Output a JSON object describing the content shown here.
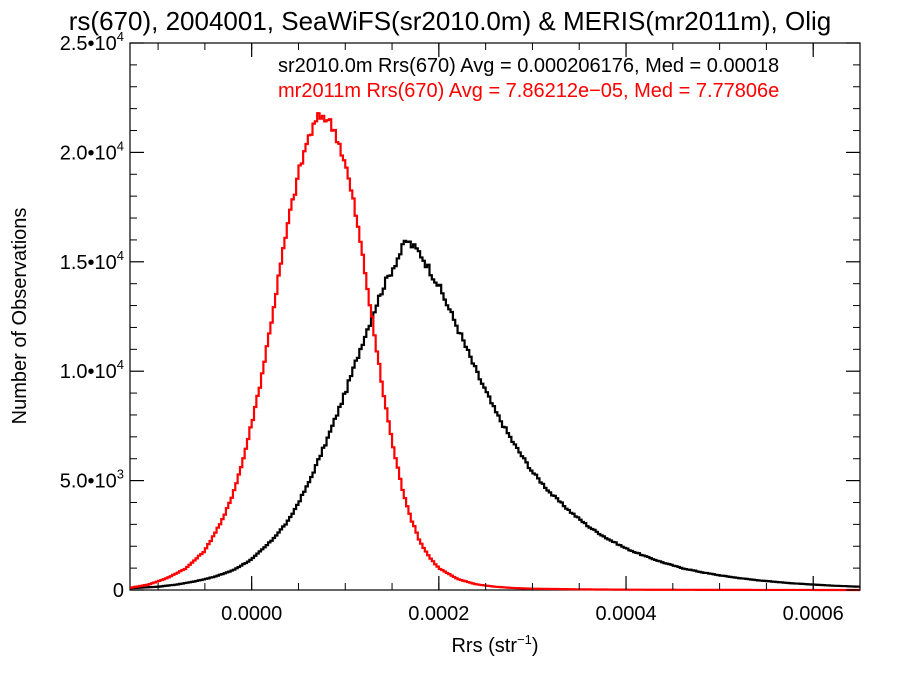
{
  "chart_data": {
    "type": "line",
    "title": "rs(670), 2004001, SeaWiFS(sr2010.0m) & MERIS(mr2011m), Olig",
    "xlabel": "Rrs (str",
    "xlabel_sup": "−1",
    "xlabel_end": ")",
    "ylabel": "Number of Observations",
    "xlim": [
      -0.00013,
      0.00065
    ],
    "ylim": [
      0,
      25000
    ],
    "xticks": [
      {
        "value": 0.0,
        "label": "0.0000"
      },
      {
        "value": 0.0002,
        "label": "0.0002"
      },
      {
        "value": 0.0004,
        "label": "0.0004"
      },
      {
        "value": 0.0006,
        "label": "0.0006"
      }
    ],
    "yticks": [
      {
        "value": 0,
        "mant": "0",
        "exp": ""
      },
      {
        "value": 5000,
        "mant": "5.0•10",
        "exp": "3"
      },
      {
        "value": 10000,
        "mant": "1.0•10",
        "exp": "4"
      },
      {
        "value": 15000,
        "mant": "1.5•10",
        "exp": "4"
      },
      {
        "value": 20000,
        "mant": "2.0•10",
        "exp": "4"
      },
      {
        "value": 25000,
        "mant": "2.5•10",
        "exp": "4"
      }
    ],
    "grid": false,
    "legend_placement": "top-right",
    "series": [
      {
        "name": "sr2010.0m",
        "annotation": "sr2010.0m Rrs(670) Avg = 0.000206176, Med = 0.00018",
        "color": "#000000",
        "points": [
          [
            -0.00013,
            80
          ],
          [
            -0.0001,
            150
          ],
          [
            -8e-05,
            250
          ],
          [
            -6e-05,
            400
          ],
          [
            -4e-05,
            600
          ],
          [
            -2e-05,
            900
          ],
          [
            0.0,
            1400
          ],
          [
            2e-05,
            2200
          ],
          [
            4e-05,
            3200
          ],
          [
            6e-05,
            4800
          ],
          [
            8e-05,
            6800
          ],
          [
            0.0001,
            9000
          ],
          [
            0.00012,
            11500
          ],
          [
            0.00014,
            13800
          ],
          [
            0.00016,
            15500
          ],
          [
            0.000165,
            16000
          ],
          [
            0.00018,
            15400
          ],
          [
            0.0002,
            13900
          ],
          [
            0.00022,
            12000
          ],
          [
            0.00024,
            10000
          ],
          [
            0.00026,
            8200
          ],
          [
            0.00028,
            6700
          ],
          [
            0.0003,
            5400
          ],
          [
            0.00032,
            4400
          ],
          [
            0.00034,
            3600
          ],
          [
            0.00036,
            2900
          ],
          [
            0.00038,
            2350
          ],
          [
            0.0004,
            1900
          ],
          [
            0.00042,
            1550
          ],
          [
            0.00044,
            1250
          ],
          [
            0.00046,
            1000
          ],
          [
            0.00048,
            820
          ],
          [
            0.0005,
            670
          ],
          [
            0.00052,
            550
          ],
          [
            0.00054,
            450
          ],
          [
            0.00056,
            370
          ],
          [
            0.00058,
            300
          ],
          [
            0.0006,
            250
          ],
          [
            0.00062,
            200
          ],
          [
            0.00065,
            150
          ]
        ]
      },
      {
        "name": "mr2011m",
        "annotation": "mr2011m Rrs(670) Avg = 7.86212e−05, Med = 7.77806e",
        "color": "#ff0000",
        "points": [
          [
            -0.00013,
            100
          ],
          [
            -0.00011,
            250
          ],
          [
            -9e-05,
            550
          ],
          [
            -7e-05,
            1000
          ],
          [
            -5e-05,
            1800
          ],
          [
            -3e-05,
            3300
          ],
          [
            -2e-05,
            4400
          ],
          [
            -1e-05,
            5800
          ],
          [
            0.0,
            7600
          ],
          [
            1e-05,
            9600
          ],
          [
            2e-05,
            12000
          ],
          [
            3e-05,
            14600
          ],
          [
            4e-05,
            17000
          ],
          [
            5e-05,
            19000
          ],
          [
            6e-05,
            20600
          ],
          [
            7e-05,
            21500
          ],
          [
            7.5e-05,
            21700
          ],
          [
            8e-05,
            21600
          ],
          [
            9e-05,
            20900
          ],
          [
            0.0001,
            19500
          ],
          [
            0.00011,
            17500
          ],
          [
            0.00012,
            14900
          ],
          [
            0.00013,
            12000
          ],
          [
            0.00014,
            9200
          ],
          [
            0.00015,
            6800
          ],
          [
            0.00016,
            4800
          ],
          [
            0.00017,
            3300
          ],
          [
            0.00018,
            2200
          ],
          [
            0.00019,
            1500
          ],
          [
            0.0002,
            1000
          ],
          [
            0.00022,
            500
          ],
          [
            0.00024,
            260
          ],
          [
            0.00026,
            150
          ],
          [
            0.00028,
            90
          ],
          [
            0.0003,
            60
          ],
          [
            0.00035,
            30
          ],
          [
            0.0004,
            15
          ],
          [
            0.0005,
            5
          ],
          [
            0.00065,
            0
          ]
        ]
      }
    ]
  }
}
